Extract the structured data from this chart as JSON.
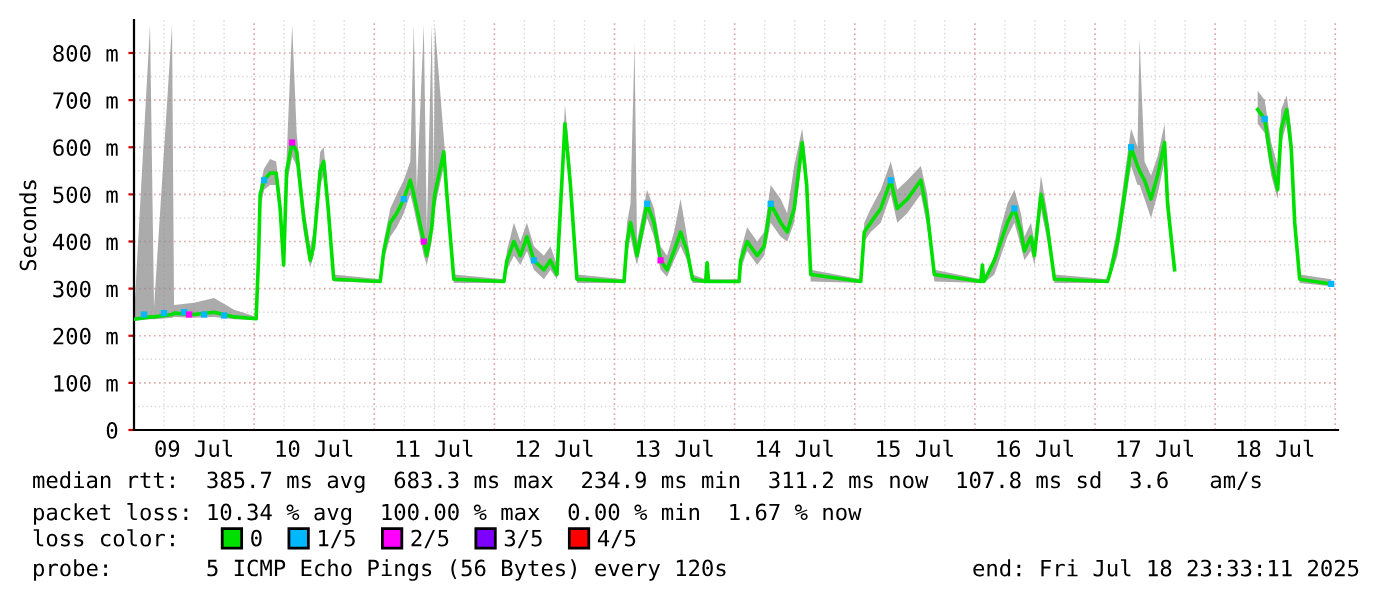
{
  "chart_data": {
    "type": "line",
    "ylabel": "Seconds",
    "legend_title": "loss color:",
    "legend": "bottom",
    "grid": true,
    "marker": "none",
    "line_style": "solid",
    "xlim": [
      "2025-07-09T00:00",
      "2025-07-19T00:33"
    ],
    "xticks": [
      {
        "value": "2025-07-09T12:00",
        "label": "09 Jul"
      },
      {
        "value": "2025-07-10T12:00",
        "label": "10 Jul"
      },
      {
        "value": "2025-07-11T12:00",
        "label": "11 Jul"
      },
      {
        "value": "2025-07-12T12:00",
        "label": "12 Jul"
      },
      {
        "value": "2025-07-13T12:00",
        "label": "13 Jul"
      },
      {
        "value": "2025-07-14T12:00",
        "label": "14 Jul"
      },
      {
        "value": "2025-07-15T12:00",
        "label": "15 Jul"
      },
      {
        "value": "2025-07-16T12:00",
        "label": "16 Jul"
      },
      {
        "value": "2025-07-17T12:00",
        "label": "17 Jul"
      },
      {
        "value": "2025-07-18T12:00",
        "label": "18 Jul"
      }
    ],
    "ylim": [
      0,
      870
    ],
    "yticks": [
      0,
      {
        "value": 100,
        "label": "100 m"
      },
      {
        "value": 200,
        "label": "200 m"
      },
      {
        "value": 300,
        "label": "300 m"
      },
      {
        "value": 400,
        "label": "400 m"
      },
      {
        "value": 500,
        "label": "500 m"
      },
      {
        "value": 600,
        "label": "600 m"
      },
      {
        "value": 700,
        "label": "700 m"
      },
      {
        "value": 800,
        "label": "800 m"
      }
    ],
    "annotations": [
      "median rtt:  385.7 ms avg  683.3 ms max  234.9 ms min  311.2 ms now  107.8 ms sd  3.6   am/s",
      "packet loss: 10.34 % avg  100.00 % max  0.00 % min  1.67 % now",
      "probe:       5 ICMP Echo Pings (56 Bytes) every 120s",
      "end: Fri Jul 18 23:33:11 2025"
    ],
    "series": [
      {
        "name": "0",
        "color": "#00e000",
        "x": [
          "2025-07-09T00:00",
          "2025-07-09T03:12",
          "2025-07-09T04:00",
          "2025-07-09T07:36",
          "2025-07-09T08:00",
          "2025-07-09T12:00",
          "2025-07-09T16:00",
          "2025-07-09T20:00",
          "2025-07-10T00:24",
          "2025-07-10T00:54",
          "2025-07-10T01:12",
          "2025-07-10T02:00",
          "2025-07-10T03:12",
          "2025-07-10T04:24",
          "2025-07-10T05:12",
          "2025-07-10T05:54",
          "2025-07-10T06:30",
          "2025-07-10T07:36",
          "2025-07-10T08:30",
          "2025-07-10T09:54",
          "2025-07-10T11:12",
          "2025-07-10T11:54",
          "2025-07-10T13:12",
          "2025-07-10T13:54",
          "2025-07-10T14:48",
          "2025-07-10T15:54",
          "2025-07-11T01:12",
          "2025-07-11T01:54",
          "2025-07-11T03:12",
          "2025-07-11T04:30",
          "2025-07-11T05:54",
          "2025-07-11T07:12",
          "2025-07-11T07:54",
          "2025-07-11T08:30",
          "2025-07-11T09:54",
          "2025-07-11T10:30",
          "2025-07-11T11:30",
          "2025-07-11T11:54",
          "2025-07-11T12:06",
          "2025-07-11T13:54",
          "2025-07-11T14:30",
          "2025-07-11T15:54",
          "2025-07-12T01:54",
          "2025-07-12T02:30",
          "2025-07-12T03:54",
          "2025-07-12T05:12",
          "2025-07-12T06:30",
          "2025-07-12T07:54",
          "2025-07-12T09:54",
          "2025-07-12T11:12",
          "2025-07-12T12:30",
          "2025-07-12T14:06",
          "2025-07-12T15:12",
          "2025-07-12T16:30",
          "2025-07-13T01:54",
          "2025-07-13T02:30",
          "2025-07-13T03:12",
          "2025-07-13T04:00",
          "2025-07-13T04:30",
          "2025-07-13T06:30",
          "2025-07-13T07:54",
          "2025-07-13T09:12",
          "2025-07-13T10:30",
          "2025-07-13T11:54",
          "2025-07-13T13:12",
          "2025-07-13T14:30",
          "2025-07-13T15:36",
          "2025-07-13T18:12",
          "2025-07-13T18:30",
          "2025-07-13T18:48",
          "2025-07-14T00:54",
          "2025-07-14T01:12",
          "2025-07-14T02:30",
          "2025-07-14T04:30",
          "2025-07-14T05:54",
          "2025-07-14T07:12",
          "2025-07-14T09:12",
          "2025-07-14T10:30",
          "2025-07-14T11:54",
          "2025-07-14T13:30",
          "2025-07-14T14:24",
          "2025-07-14T15:12",
          "2025-07-15T01:12",
          "2025-07-15T01:54",
          "2025-07-15T03:12",
          "2025-07-15T05:12",
          "2025-07-15T07:12",
          "2025-07-15T08:30",
          "2025-07-15T10:30",
          "2025-07-15T13:12",
          "2025-07-15T14:30",
          "2025-07-15T15:54",
          "2025-07-16T01:12",
          "2025-07-16T01:30",
          "2025-07-16T01:48",
          "2025-07-16T03:54",
          "2025-07-16T05:12",
          "2025-07-16T06:30",
          "2025-07-16T07:54",
          "2025-07-16T09:12",
          "2025-07-16T09:54",
          "2025-07-16T11:12",
          "2025-07-16T11:54",
          "2025-07-16T13:12",
          "2025-07-16T14:30",
          "2025-07-16T15:54",
          "2025-07-17T02:30",
          "2025-07-17T03:12",
          "2025-07-17T04:30",
          "2025-07-17T05:54",
          "2025-07-17T07:12",
          "2025-07-17T08:30",
          "2025-07-17T08:54",
          "2025-07-17T09:54",
          "2025-07-17T11:12",
          "2025-07-17T12:30",
          "2025-07-17T13:54",
          "2025-07-17T14:30",
          "2025-07-17T15:54",
          "2025-07-17T23:00",
          "2025-07-18T08:30",
          "2025-07-18T09:54",
          "2025-07-18T11:12",
          "2025-07-18T12:30",
          "2025-07-18T13:12",
          "2025-07-18T14:18",
          "2025-07-18T15:12",
          "2025-07-18T15:54",
          "2025-07-18T16:54",
          "2025-07-18T23:12"
        ],
        "values": [
          235,
          240,
          240,
          245,
          248,
          245,
          250,
          240,
          236,
          370,
          500,
          530,
          545,
          545,
          470,
          350,
          550,
          610,
          590,
          450,
          360,
          390,
          550,
          570,
          470,
          320,
          315,
          380,
          440,
          460,
          490,
          530,
          500,
          470,
          400,
          370,
          430,
          480,
          500,
          590,
          500,
          320,
          315,
          360,
          400,
          370,
          410,
          360,
          340,
          360,
          330,
          650,
          520,
          320,
          315,
          400,
          440,
          400,
          370,
          480,
          440,
          360,
          340,
          380,
          420,
          380,
          320,
          315,
          355,
          315,
          315,
          360,
          400,
          370,
          390,
          480,
          440,
          420,
          470,
          610,
          520,
          330,
          315,
          420,
          440,
          470,
          530,
          470,
          490,
          530,
          460,
          330,
          315,
          350,
          315,
          360,
          400,
          440,
          470,
          420,
          380,
          410,
          370,
          500,
          430,
          320,
          315,
          340,
          400,
          500,
          600,
          560,
          550,
          530,
          490,
          540,
          610,
          480,
          340,
          null,
          680,
          660,
          570,
          510,
          640,
          680,
          600,
          440,
          320,
          310
        ],
        "lower": [
          232,
          235,
          235,
          238,
          240,
          238,
          240,
          235,
          234,
          340,
          470,
          510,
          520,
          520,
          440,
          340,
          520,
          580,
          560,
          420,
          345,
          370,
          520,
          540,
          440,
          315,
          312,
          360,
          410,
          430,
          460,
          500,
          470,
          440,
          370,
          350,
          400,
          450,
          470,
          560,
          470,
          312,
          312,
          340,
          370,
          350,
          380,
          340,
          320,
          340,
          320,
          620,
          490,
          312,
          312,
          370,
          410,
          370,
          350,
          450,
          410,
          340,
          325,
          360,
          390,
          360,
          312,
          312,
          315,
          312,
          312,
          340,
          380,
          350,
          370,
          440,
          410,
          400,
          440,
          580,
          490,
          315,
          312,
          400,
          420,
          440,
          500,
          440,
          460,
          500,
          430,
          315,
          312,
          320,
          312,
          330,
          370,
          410,
          440,
          390,
          360,
          380,
          350,
          470,
          400,
          312,
          312,
          330,
          370,
          470,
          560,
          520,
          520,
          490,
          450,
          500,
          570,
          450,
          330,
          null,
          650,
          630,
          540,
          490,
          610,
          650,
          570,
          420,
          312,
          305
        ],
        "upper": [
          240,
          860,
          260,
          860,
          265,
          270,
          280,
          255,
          240,
          400,
          520,
          555,
          575,
          570,
          500,
          380,
          580,
          860,
          630,
          480,
          390,
          420,
          590,
          600,
          500,
          330,
          320,
          400,
          470,
          500,
          530,
          570,
          860,
          510,
          860,
          420,
          860,
          520,
          860,
          620,
          540,
          330,
          320,
          380,
          440,
          400,
          440,
          390,
          370,
          390,
          350,
          690,
          560,
          330,
          320,
          440,
          480,
          820,
          400,
          510,
          470,
          390,
          370,
          420,
          490,
          410,
          330,
          320,
          360,
          320,
          320,
          380,
          430,
          400,
          420,
          520,
          490,
          460,
          560,
          640,
          560,
          340,
          320,
          440,
          470,
          510,
          570,
          510,
          530,
          560,
          500,
          340,
          320,
          360,
          320,
          370,
          430,
          480,
          510,
          460,
          410,
          440,
          400,
          540,
          460,
          330,
          320,
          360,
          430,
          540,
          640,
          600,
          830,
          570,
          540,
          580,
          650,
          520,
          360,
          null,
          720,
          700,
          610,
          560,
          680,
          710,
          640,
          480,
          330,
          320
        ]
      },
      {
        "name": "1/5",
        "type": "scatter",
        "marker": "square",
        "color": "#00b8ff",
        "x": [
          "2025-07-09T02:00",
          "2025-07-09T06:00",
          "2025-07-09T10:00",
          "2025-07-09T14:00",
          "2025-07-09T18:00",
          "2025-07-10T02:00",
          "2025-07-11T05:54",
          "2025-07-12T07:54",
          "2025-07-13T06:30",
          "2025-07-14T07:12",
          "2025-07-15T07:12",
          "2025-07-16T07:54",
          "2025-07-17T07:12",
          "2025-07-18T09:54",
          "2025-07-18T23:12"
        ],
        "values": [
          245,
          248,
          250,
          245,
          243,
          530,
          490,
          360,
          480,
          480,
          530,
          470,
          600,
          660,
          310
        ]
      },
      {
        "name": "2/5",
        "type": "scatter",
        "marker": "square",
        "color": "#ff00ff",
        "x": [
          "2025-07-09T11:00",
          "2025-07-10T07:36",
          "2025-07-11T09:54",
          "2025-07-13T09:12"
        ],
        "values": [
          245,
          610,
          400,
          360
        ]
      },
      {
        "name": "3/5",
        "type": "scatter",
        "marker": "square",
        "color": "#7e00ff"
      },
      {
        "name": "4/5",
        "type": "scatter",
        "marker": "square",
        "color": "#ff0000"
      }
    ]
  }
}
